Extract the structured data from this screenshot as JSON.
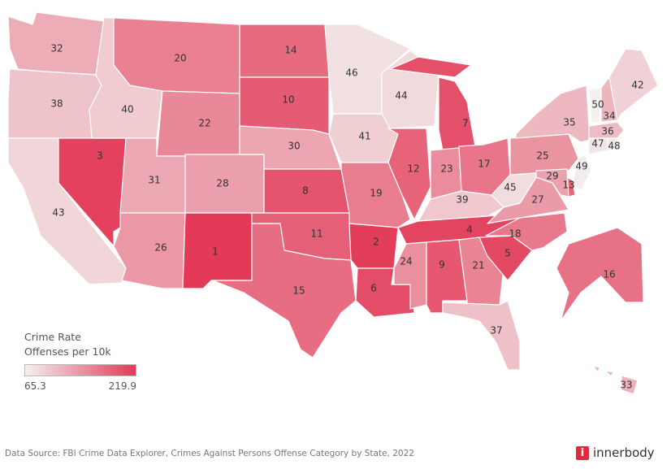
{
  "legend": {
    "title": "Crime Rate",
    "subtitle": "Offenses per 10k",
    "min": "65.3",
    "max": "219.9",
    "color_min": "#f3f0ef",
    "color_max": "#e23a57"
  },
  "ranks": {
    "WA": 32,
    "OR": 38,
    "CA": 43,
    "NV": 3,
    "ID": 40,
    "MT": 20,
    "WY": 22,
    "UT": 31,
    "AZ": 26,
    "CO": 28,
    "NM": 1,
    "ND": 14,
    "SD": 10,
    "NE": 30,
    "KS": 8,
    "OK": 11,
    "TX": 15,
    "MN": 46,
    "IA": 41,
    "MO": 19,
    "AR": 2,
    "LA": 6,
    "WI": 44,
    "IL": 12,
    "MI": 7,
    "IN": 23,
    "OH": 17,
    "KY": 39,
    "TN": 4,
    "MS": 24,
    "AL": 9,
    "GA": 21,
    "FL": 37,
    "SC": 5,
    "NC": 18,
    "VA": 27,
    "WV": 45,
    "PA": 25,
    "NY": 35,
    "VT": 50,
    "NH": 34,
    "ME": 42,
    "MA": 36,
    "CT": 47,
    "RI": 48,
    "NJ": 49,
    "DE": 13,
    "MD": 29,
    "AK": 16,
    "HI": 33
  },
  "footer": {
    "source": "Data Source: FBI Crime Data Explorer, Crimes Against Persons Offense Category by State, 2022",
    "brand": "innerbody",
    "brand_mark": "i"
  }
}
